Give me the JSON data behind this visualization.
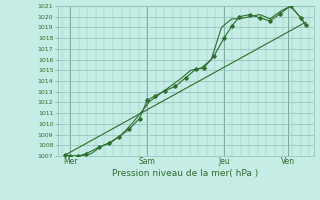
{
  "xlabel": "Pression niveau de la mer( hPa )",
  "background_color": "#c5ede6",
  "grid_color": "#8fbfb8",
  "line_color": "#2d6e2d",
  "ylim": [
    1007,
    1021
  ],
  "yticks": [
    1007,
    1008,
    1009,
    1010,
    1011,
    1012,
    1013,
    1014,
    1015,
    1016,
    1017,
    1018,
    1019,
    1020,
    1021
  ],
  "xtick_labels": [
    "Mer",
    "Sam",
    "Jeu",
    "Ven"
  ],
  "xtick_positions": [
    1,
    4,
    7,
    9.5
  ],
  "xlim": [
    0.5,
    10.5
  ],
  "trend_x": [
    0.8,
    10.2
  ],
  "trend_y": [
    1007.1,
    1019.5
  ],
  "data_x": [
    0.8,
    1.0,
    1.3,
    1.6,
    2.1,
    2.5,
    2.9,
    3.3,
    3.7,
    4.0,
    4.3,
    4.7,
    5.1,
    5.5,
    5.9,
    6.2,
    6.6,
    7.0,
    7.3,
    7.6,
    8.0,
    8.4,
    8.8,
    9.2,
    9.6,
    10.0,
    10.2
  ],
  "data_y": [
    1007.1,
    1007.0,
    1007.0,
    1007.2,
    1007.8,
    1008.2,
    1008.8,
    1009.5,
    1010.5,
    1012.2,
    1012.6,
    1013.1,
    1013.5,
    1014.3,
    1015.1,
    1015.2,
    1016.3,
    1018.0,
    1019.1,
    1020.0,
    1020.2,
    1019.9,
    1019.6,
    1020.3,
    1021.0,
    1019.9,
    1019.2
  ],
  "smooth_x": [
    0.8,
    1.0,
    1.4,
    1.8,
    2.2,
    2.6,
    3.0,
    3.4,
    3.8,
    4.1,
    4.5,
    4.9,
    5.3,
    5.7,
    6.1,
    6.5,
    6.9,
    7.3,
    7.6,
    8.0,
    8.4,
    8.8,
    9.2,
    9.6,
    10.0,
    10.2
  ],
  "smooth_y": [
    1007.1,
    1007.0,
    1007.0,
    1007.2,
    1007.9,
    1008.3,
    1009.0,
    1010.0,
    1011.2,
    1012.1,
    1012.8,
    1013.5,
    1014.2,
    1015.0,
    1015.2,
    1016.0,
    1019.0,
    1019.8,
    1019.8,
    1020.0,
    1020.2,
    1019.8,
    1020.5,
    1021.0,
    1019.9,
    1019.2
  ],
  "vlines": [
    1,
    4,
    7,
    9.5
  ]
}
